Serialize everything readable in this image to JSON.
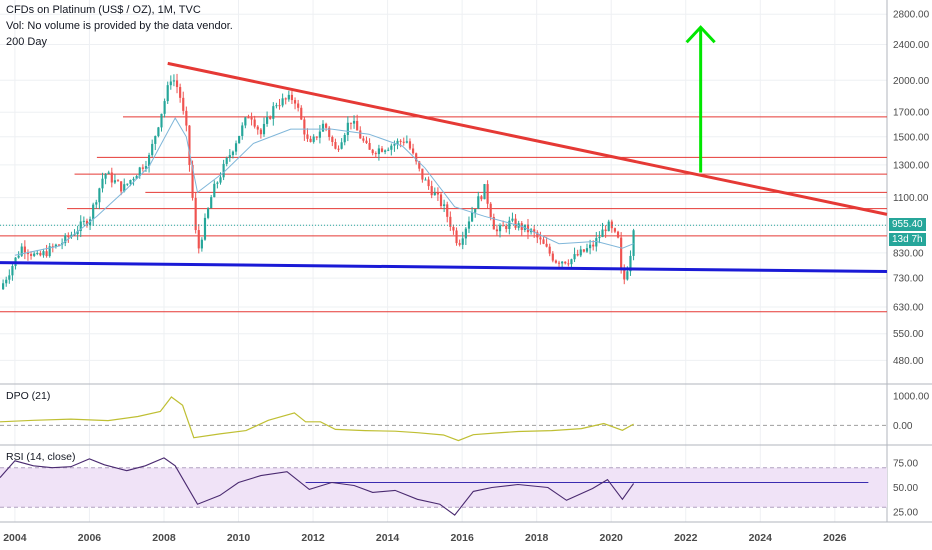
{
  "header": {
    "title": "CFDs on Platinum (US$ / OZ), 1M, TVC",
    "vol_note": "Vol: No volume is provided by the data vendor.",
    "ma_label": "200 Day"
  },
  "price_tag": {
    "value": "955.40",
    "countdown": "13d 7h",
    "color": "#26a69a"
  },
  "colors": {
    "up": "#26a69a",
    "down": "#ef5350",
    "resistance": "#e53935",
    "support": "#1a1ad6",
    "target_arrow": "#00e600",
    "ma": "#7fb6d9",
    "dpo": "#bfbf33",
    "rsi": "#4a2a70",
    "rsi_band": "#f0e3f7"
  },
  "chart_data": [
    {
      "type": "candlestick",
      "title": "CFDs on Platinum (US$ / OZ), 1M, TVC",
      "scale": "log",
      "ylim": [
        430,
        2950
      ],
      "y_ticks": [
        2800,
        2400,
        2000,
        1700,
        1500,
        1300,
        1100,
        955.4,
        830,
        730,
        630,
        550,
        480
      ],
      "y_tick_labels": [
        "2800.00",
        "2400.00",
        "2000.00",
        "1700.00",
        "1500.00",
        "1300.00",
        "1100.00",
        "955.40",
        "830.00",
        "730.00",
        "630.00",
        "550.00",
        "480.00"
      ],
      "x_ticks": [
        "2004",
        "2006",
        "2008",
        "2010",
        "2012",
        "2014",
        "2016",
        "2018",
        "2020",
        "2022",
        "2024",
        "2026"
      ],
      "xlim": [
        2003.6,
        2027.4
      ],
      "price_path": [
        [
          2003.6,
          690
        ],
        [
          2004.2,
          860
        ],
        [
          2004.6,
          810
        ],
        [
          2005.3,
          880
        ],
        [
          2006.0,
          990
        ],
        [
          2006.4,
          1250
        ],
        [
          2006.9,
          1150
        ],
        [
          2007.6,
          1350
        ],
        [
          2008.2,
          2050
        ],
        [
          2008.4,
          1900
        ],
        [
          2008.6,
          1550
        ],
        [
          2008.9,
          830
        ],
        [
          2009.3,
          1130
        ],
        [
          2009.9,
          1450
        ],
        [
          2010.3,
          1700
        ],
        [
          2010.6,
          1520
        ],
        [
          2011.0,
          1780
        ],
        [
          2011.5,
          1830
        ],
        [
          2011.9,
          1420
        ],
        [
          2012.3,
          1610
        ],
        [
          2012.6,
          1400
        ],
        [
          2013.0,
          1640
        ],
        [
          2013.5,
          1390
        ],
        [
          2014.0,
          1430
        ],
        [
          2014.5,
          1480
        ],
        [
          2014.9,
          1230
        ],
        [
          2015.5,
          1050
        ],
        [
          2015.9,
          870
        ],
        [
          2016.3,
          1040
        ],
        [
          2016.6,
          1150
        ],
        [
          2016.9,
          920
        ],
        [
          2017.3,
          970
        ],
        [
          2017.9,
          920
        ],
        [
          2018.5,
          800
        ],
        [
          2018.9,
          800
        ],
        [
          2019.5,
          860
        ],
        [
          2019.9,
          960
        ],
        [
          2020.2,
          880
        ],
        [
          2020.3,
          700
        ],
        [
          2020.5,
          810
        ],
        [
          2020.6,
          955.4
        ]
      ],
      "ma_200_path": [
        [
          2004.0,
          820
        ],
        [
          2005.2,
          860
        ],
        [
          2006.2,
          1000
        ],
        [
          2007.0,
          1150
        ],
        [
          2007.6,
          1290
        ],
        [
          2008.3,
          1650
        ],
        [
          2008.6,
          1500
        ],
        [
          2008.9,
          1130
        ],
        [
          2009.6,
          1250
        ],
        [
          2010.4,
          1450
        ],
        [
          2011.4,
          1560
        ],
        [
          2012.5,
          1560
        ],
        [
          2013.5,
          1520
        ],
        [
          2014.4,
          1430
        ],
        [
          2015.0,
          1280
        ],
        [
          2015.8,
          1050
        ],
        [
          2016.6,
          1000
        ],
        [
          2017.6,
          950
        ],
        [
          2018.6,
          870
        ],
        [
          2019.6,
          880
        ],
        [
          2020.3,
          850
        ],
        [
          2020.6,
          870
        ]
      ],
      "trendlines": [
        {
          "name": "descending resistance",
          "from": [
            2008.1,
            2180
          ],
          "to": [
            2027.4,
            1010
          ],
          "color": "#e53935"
        },
        {
          "name": "long-term support",
          "from": [
            2003.6,
            790
          ],
          "to": [
            2027.4,
            755
          ],
          "color": "#1a1ad6"
        }
      ],
      "horizontal_levels": [
        {
          "value": 1660,
          "from": 2006.9
        },
        {
          "value": 1350,
          "from": 2006.2
        },
        {
          "value": 1240,
          "from": 2005.6
        },
        {
          "value": 1130,
          "from": 2007.5
        },
        {
          "value": 1040,
          "from": 2005.4
        },
        {
          "value": 905,
          "from": 2003.6
        },
        {
          "value": 615,
          "from": 2003.6
        }
      ],
      "target_arrow": {
        "x": 2022.4,
        "from": 1250,
        "to": 2620
      }
    },
    {
      "type": "line",
      "title": "DPO (21)",
      "ylim": [
        -600,
        1300
      ],
      "y_ticks": [
        1000,
        0
      ],
      "y_tick_labels": [
        "1000.00",
        "0.00"
      ],
      "baseline": 0,
      "path": [
        [
          2003.6,
          120
        ],
        [
          2004.5,
          170
        ],
        [
          2005.5,
          210
        ],
        [
          2006.5,
          160
        ],
        [
          2007.3,
          300
        ],
        [
          2007.9,
          470
        ],
        [
          2008.2,
          960
        ],
        [
          2008.5,
          680
        ],
        [
          2008.8,
          -420
        ],
        [
          2009.5,
          -290
        ],
        [
          2010.2,
          -180
        ],
        [
          2010.8,
          170
        ],
        [
          2011.5,
          420
        ],
        [
          2011.8,
          120
        ],
        [
          2012.2,
          120
        ],
        [
          2012.6,
          -140
        ],
        [
          2013.4,
          -180
        ],
        [
          2014.2,
          -200
        ],
        [
          2014.8,
          -250
        ],
        [
          2015.5,
          -330
        ],
        [
          2015.9,
          -520
        ],
        [
          2016.3,
          -320
        ],
        [
          2016.9,
          -260
        ],
        [
          2017.5,
          -210
        ],
        [
          2018.4,
          -180
        ],
        [
          2019.2,
          -110
        ],
        [
          2019.8,
          60
        ],
        [
          2020.3,
          -170
        ],
        [
          2020.6,
          40
        ]
      ]
    },
    {
      "type": "line",
      "title": "RSI (14, close)",
      "ylim": [
        15,
        90
      ],
      "y_ticks": [
        75,
        50,
        25
      ],
      "y_tick_labels": [
        "75.00",
        "50.00",
        "25.00"
      ],
      "band": [
        30,
        70
      ],
      "reference_line": 55,
      "path": [
        [
          2003.6,
          60
        ],
        [
          2004.0,
          77
        ],
        [
          2004.5,
          72
        ],
        [
          2005.0,
          70
        ],
        [
          2005.5,
          71
        ],
        [
          2006.0,
          79
        ],
        [
          2006.4,
          73
        ],
        [
          2007.0,
          67
        ],
        [
          2007.5,
          72
        ],
        [
          2008.0,
          80
        ],
        [
          2008.3,
          72
        ],
        [
          2008.9,
          33
        ],
        [
          2009.5,
          42
        ],
        [
          2010.0,
          55
        ],
        [
          2010.6,
          62
        ],
        [
          2011.3,
          66
        ],
        [
          2011.9,
          48
        ],
        [
          2012.5,
          55
        ],
        [
          2013.1,
          52
        ],
        [
          2013.6,
          45
        ],
        [
          2014.2,
          47
        ],
        [
          2014.8,
          38
        ],
        [
          2015.4,
          33
        ],
        [
          2015.8,
          22
        ],
        [
          2016.3,
          46
        ],
        [
          2016.8,
          50
        ],
        [
          2017.5,
          53
        ],
        [
          2018.3,
          50
        ],
        [
          2018.8,
          37
        ],
        [
          2019.5,
          49
        ],
        [
          2019.9,
          58
        ],
        [
          2020.3,
          38
        ],
        [
          2020.6,
          54
        ]
      ]
    }
  ]
}
